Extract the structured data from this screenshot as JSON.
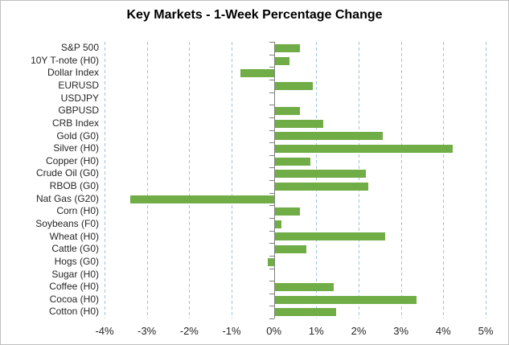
{
  "title": "Key Markets - 1-Week Percentage Change",
  "colors": {
    "bar": "#70AD47",
    "gridline": "#9DC3E6",
    "axis": "#808080",
    "text": "#262626",
    "border": "#BFBFBF"
  },
  "chart_data": {
    "type": "bar",
    "orientation": "horizontal",
    "title": "Key Markets - 1-Week Percentage Change",
    "categories": [
      "S&P 500",
      "10Y T-note (H0)",
      "Dollar Index",
      "EURUSD",
      "USDJPY",
      "GBPUSD",
      "CRB Index",
      "Gold (G0)",
      "Silver (H0)",
      "Copper (H0)",
      "Crude Oil (G0)",
      "RBOB (G0)",
      "Nat Gas (G20)",
      "Corn (H0)",
      "Soybeans (F0)",
      "Wheat (H0)",
      "Cattle (G0)",
      "Hogs (G0)",
      "Sugar (H0)",
      "Coffee (H0)",
      "Cocoa (H0)",
      "Cotton (H0)"
    ],
    "values": [
      0.6,
      0.35,
      -0.8,
      0.9,
      0,
      0.6,
      1.15,
      2.55,
      4.2,
      0.85,
      2.15,
      2.2,
      -3.4,
      0.6,
      0.15,
      2.6,
      0.75,
      -0.15,
      0,
      1.4,
      3.35,
      1.45
    ],
    "xlabel": "",
    "ylabel": "",
    "xlim": [
      -4,
      5
    ],
    "xtick_step": 1,
    "xtick_labels": [
      "-4%",
      "-3%",
      "-2%",
      "-1%",
      "0%",
      "1%",
      "2%",
      "3%",
      "4%",
      "5%"
    ],
    "grid": "vertical-dashed",
    "legend": "none",
    "bar_color": "#70AD47"
  }
}
